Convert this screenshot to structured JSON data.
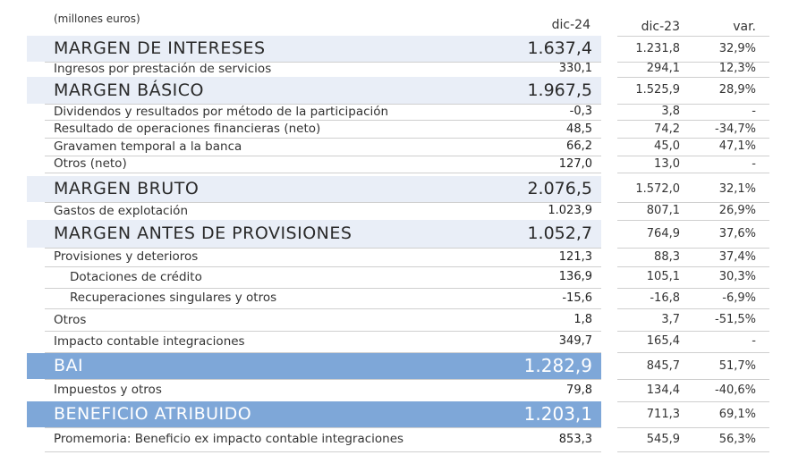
{
  "header": {
    "units": "(millones euros)",
    "col_dic24": "dic-24",
    "col_dic23": "dic-23",
    "col_var": "var."
  },
  "rows": [
    {
      "label": "MARGEN DE INTERESES",
      "dic24": "1.637,4",
      "dic23": "1.231,8",
      "var": "32,9%",
      "style": "highlight"
    },
    {
      "label": "Ingresos por prestación de servicios",
      "dic24": "330,1",
      "dic23": "294,1",
      "var": "12,3%",
      "style": "normal"
    },
    {
      "label": "MARGEN BÁSICO",
      "dic24": "1.967,5",
      "dic23": "1.525,9",
      "var": "28,9%",
      "style": "highlight"
    },
    {
      "label": "Dividendos y resultados por método de la participación",
      "dic24": "-0,3",
      "dic23": "3,8",
      "var": "-",
      "style": "normal"
    },
    {
      "label": "Resultado de operaciones financieras (neto)",
      "dic24": "48,5",
      "dic23": "74,2",
      "var": "-34,7%",
      "style": "normal"
    },
    {
      "label": "Gravamen temporal a la banca",
      "dic24": "66,2",
      "dic23": "45,0",
      "var": "47,1%",
      "style": "normal"
    },
    {
      "label": "Otros (neto)",
      "dic24": "127,0",
      "dic23": "13,0",
      "var": "-",
      "style": "normal"
    },
    {
      "label": "MARGEN BRUTO",
      "dic24": "2.076,5",
      "dic23": "1.572,0",
      "var": "32,1%",
      "style": "highlight"
    },
    {
      "label": "Gastos de explotación",
      "dic24": "1.023,9",
      "dic23": "807,1",
      "var": "26,9%",
      "style": "normal"
    },
    {
      "label": "MARGEN ANTES DE PROVISIONES",
      "dic24": "1.052,7",
      "dic23": "764,9",
      "var": "37,6%",
      "style": "highlight"
    },
    {
      "label": "Provisiones y deterioros",
      "dic24": "121,3",
      "dic23": "88,3",
      "var": "37,4%",
      "style": "normal"
    },
    {
      "label": "Dotaciones de crédito",
      "dic24": "136,9",
      "dic23": "105,1",
      "var": "30,3%",
      "style": "indent"
    },
    {
      "label": "Recuperaciones singulares y otros",
      "dic24": "-15,6",
      "dic23": "-16,8",
      "var": "-6,9%",
      "style": "indent"
    },
    {
      "label": "Otros",
      "dic24": "1,8",
      "dic23": "3,7",
      "var": "-51,5%",
      "style": "normal"
    },
    {
      "label": "Impacto contable integraciones",
      "dic24": "349,7",
      "dic23": "165,4",
      "var": "-",
      "style": "normal"
    },
    {
      "label": "BAI",
      "dic24": "1.282,9",
      "dic23": "845,7",
      "var": "51,7%",
      "style": "strong"
    },
    {
      "label": "Impuestos y otros",
      "dic24": "79,8",
      "dic23": "134,4",
      "var": "-40,6%",
      "style": "normal"
    },
    {
      "label": "BENEFICIO ATRIBUIDO",
      "dic24": "1.203,1",
      "dic23": "711,3",
      "var": "69,1%",
      "style": "strong"
    },
    {
      "label": "Promemoria: Beneficio ex impacto contable integraciones",
      "dic24": "853,3",
      "dic23": "545,9",
      "var": "56,3%",
      "style": "normal"
    }
  ]
}
